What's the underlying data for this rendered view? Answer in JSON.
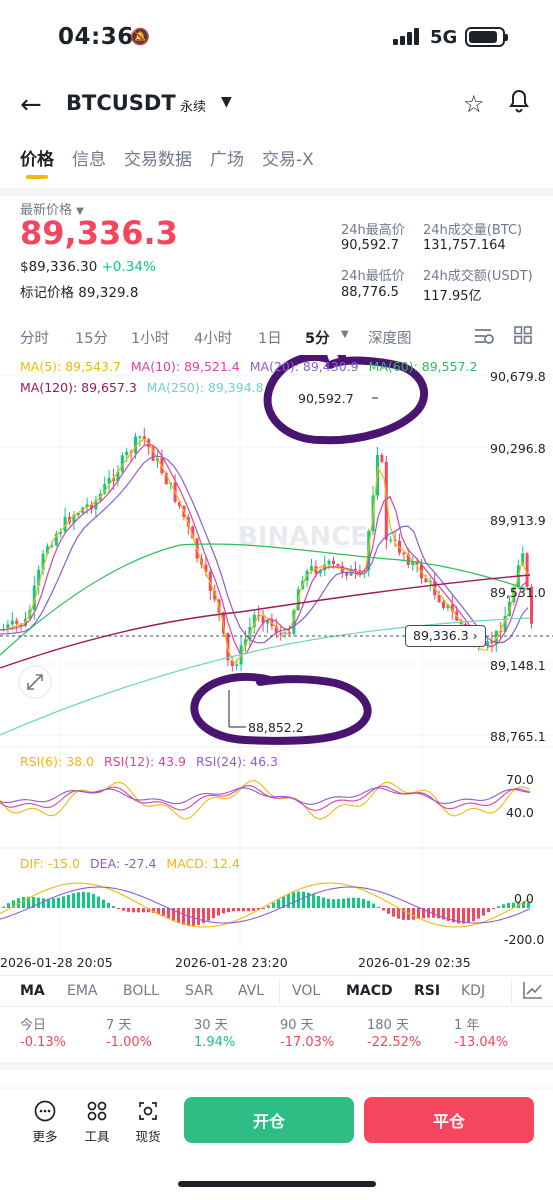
{
  "status_bar": {
    "time": "04:36",
    "network": "5G"
  },
  "header": {
    "symbol": "BTCUSDT",
    "contract_type": "永续"
  },
  "tabs": [
    {
      "label": "价格"
    },
    {
      "label": "信息"
    },
    {
      "label": "交易数据"
    },
    {
      "label": "广场"
    },
    {
      "label": "交易-X"
    }
  ],
  "ticker": {
    "last_price_label": "最新价格",
    "last_price": "89,336.3",
    "usd_price": "$89,336.30",
    "change": "+0.34%",
    "mark_price_label": "标记价格",
    "mark_price": "89,329.8",
    "high_label": "24h最高价",
    "high": "90,592.7",
    "vol_btc_label": "24h成交量(BTC)",
    "vol_btc": "131,757.164",
    "low_label": "24h最低价",
    "low": "88,776.5",
    "vol_usdt_label": "24h成交额(USDT)",
    "vol_usdt": "117.95亿"
  },
  "intervals": {
    "items": [
      "分时",
      "15分",
      "1小时",
      "4小时",
      "1日",
      "5分"
    ],
    "active": "5分",
    "depth": "深度图"
  },
  "ma_legend": {
    "ma5": "MA(5): 89,543.7",
    "ma10": "MA(10): 89,521.4",
    "ma20": "MA(20): 89,430.9",
    "ma60": "MA(60): 89,557.2",
    "ma120": "MA(120): 89,657.3",
    "ma250": "MA(250): 89,394.8"
  },
  "price_axis": [
    "90,679.8",
    "90,296.8",
    "89,913.9",
    "89,531.0",
    "89,148.1",
    "88,765.1"
  ],
  "annotations": {
    "high_marker": "90,592.7",
    "low_marker": "88,852.2",
    "current_price": "89,336.3"
  },
  "watermark": "BINANCE",
  "rsi_legend": {
    "rsi6": "RSI(6): 38.0",
    "rsi12": "RSI(12): 43.9",
    "rsi24": "RSI(24): 46.3"
  },
  "rsi_axis": [
    "70.0",
    "40.0"
  ],
  "macd_legend": {
    "dif": "DIF: -15.0",
    "dea": "DEA: -27.4",
    "macd": "MACD: 12.4"
  },
  "macd_axis": [
    "0.0",
    "-200.0"
  ],
  "time_axis": [
    "2026-01-28 20:05",
    "2026-01-28 23:20",
    "2026-01-29 02:35"
  ],
  "indicators": {
    "items": [
      "MA",
      "EMA",
      "BOLL",
      "SAR",
      "AVL",
      "VOL",
      "MACD",
      "RSI",
      "KDJ"
    ],
    "active": [
      "MA",
      "MACD",
      "RSI"
    ]
  },
  "performance": [
    {
      "label": "今日",
      "value": "-0.13%"
    },
    {
      "label": "7 天",
      "value": "-1.00%"
    },
    {
      "label": "30 天",
      "value": "1.94%"
    },
    {
      "label": "90 天",
      "value": "-17.03%"
    },
    {
      "label": "180 天",
      "value": "-22.52%"
    },
    {
      "label": "1 年",
      "value": "-13.04%"
    }
  ],
  "bottom_nav": {
    "more": "更多",
    "tools": "工具",
    "spot": "现货",
    "open": "开仓",
    "close": "平仓"
  },
  "colors": {
    "up": "#0ecb81",
    "down": "#f6465d",
    "brand": "#f0b90b",
    "ma5": "#f0b90b",
    "ma10": "#e040a0",
    "ma20": "#8e5cd0",
    "ma60": "#2ebd59",
    "ma120": "#9b1a5a",
    "ma250": "#6fd3c4",
    "annotation": "#4a1570"
  }
}
